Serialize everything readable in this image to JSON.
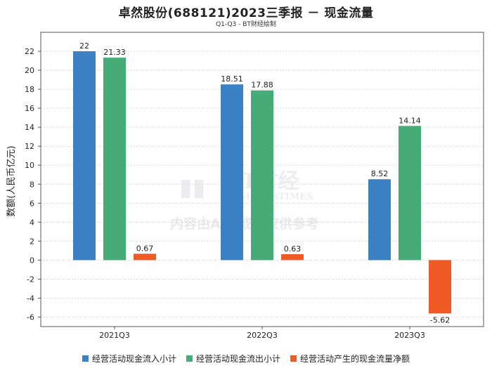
{
  "chart_data": {
    "type": "bar",
    "title": "卓然股份(688121)2023三季报 － 现金流量",
    "subtitle": "Q1-Q3 - BT财经绘制",
    "ylabel": "数额(人民币亿元)",
    "xlabel": "",
    "categories": [
      "2021Q3",
      "2022Q3",
      "2023Q3"
    ],
    "ylim": [
      -7,
      24
    ],
    "yticks": [
      -6,
      -4,
      -2,
      0,
      2,
      4,
      6,
      8,
      10,
      12,
      14,
      16,
      18,
      20,
      22
    ],
    "grid": true,
    "legend_position": "bottom",
    "series": [
      {
        "name": "经营活动现金流入小计",
        "color": "#3a80c2",
        "values": [
          22,
          18.51,
          8.52
        ],
        "labels": [
          "22",
          "18.51",
          "8.52"
        ]
      },
      {
        "name": "经营活动现金流出小计",
        "color": "#46ab77",
        "values": [
          21.33,
          17.88,
          14.14
        ],
        "labels": [
          "21.33",
          "17.88",
          "14.14"
        ]
      },
      {
        "name": "经营活动产生的现金流量净额",
        "color": "#f05a24",
        "values": [
          0.67,
          0.63,
          -5.62
        ],
        "labels": [
          "0.67",
          "0.63",
          "-5.62"
        ]
      }
    ]
  },
  "watermark": {
    "brand": "BT财经",
    "brand_en": "BUSINESSTIMES",
    "notice": "内容由AI生成，仅供参考"
  }
}
